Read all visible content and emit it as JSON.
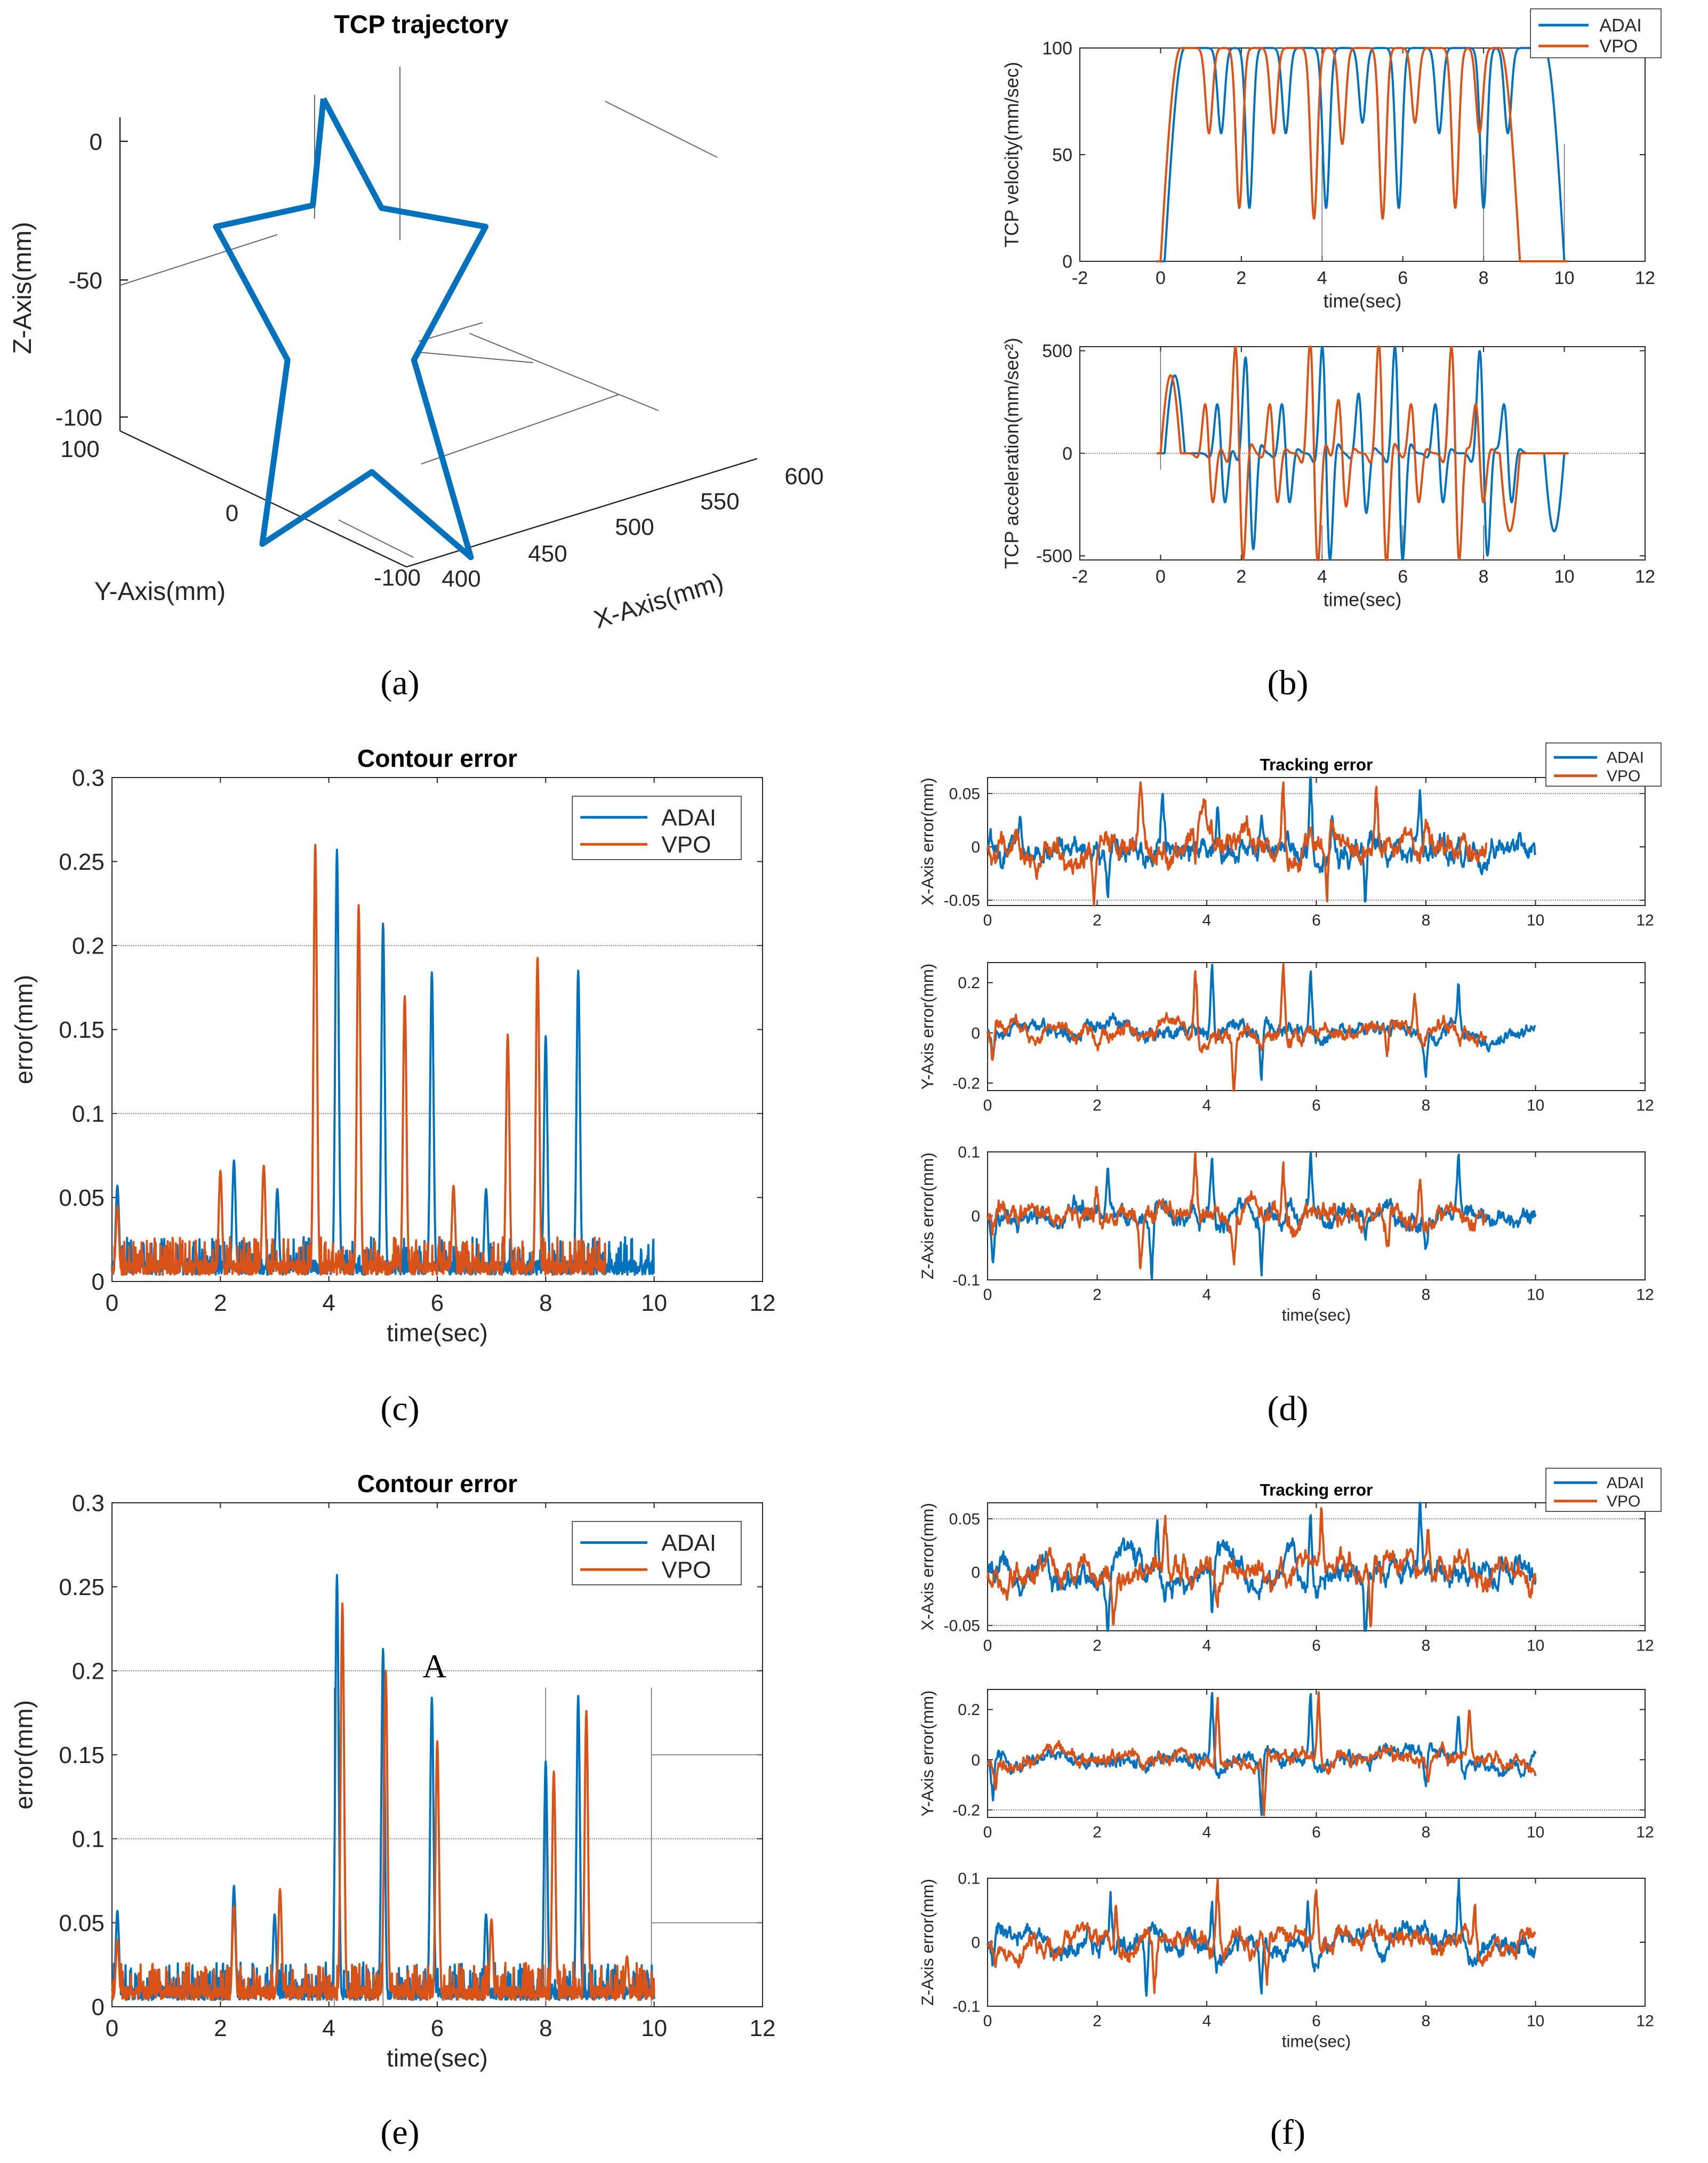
{
  "colors": {
    "adai": "#0072BD",
    "vpo": "#D95319",
    "axis": "#262626",
    "ref": "#666666"
  },
  "captions": [
    "(a)",
    "(b)",
    "(c)",
    "(d)",
    "(e)",
    "(f)"
  ],
  "chart_data": [
    {
      "id": "a",
      "type": "line3d",
      "title": "TCP trajectory",
      "xlabel": "X-Axis(mm)",
      "ylabel": "Y-Axis(mm)",
      "zlabel": "Z-Axis(mm)",
      "x_ticks": [
        "400",
        "450",
        "500",
        "550",
        "600"
      ],
      "y_ticks": [
        "-100",
        "0",
        "100"
      ],
      "z_ticks": [
        "0",
        "-50",
        "-100"
      ],
      "shape": "five-pointed star",
      "star_outline": [
        [
          0.255,
          0.13
        ],
        [
          0.393,
          0.335
        ],
        [
          0.64,
          0.37
        ],
        [
          0.47,
          0.62
        ],
        [
          0.605,
          0.99
        ],
        [
          0.37,
          0.83
        ],
        [
          0.11,
          0.965
        ],
        [
          0.17,
          0.62
        ],
        [
          0.0,
          0.37
        ],
        [
          0.23,
          0.33
        ]
      ],
      "series": [
        {
          "name": "star path"
        }
      ]
    },
    {
      "id": "b1",
      "type": "line",
      "title": "",
      "xlabel": "time(sec)",
      "ylabel": "TCP velocity(mm/sec)",
      "xlim": [
        -2,
        12
      ],
      "ylim": [
        0,
        100
      ],
      "x_ticks": [
        "-2",
        "0",
        "2",
        "4",
        "6",
        "8",
        "10",
        "12"
      ],
      "y_ticks": [
        "0",
        "50",
        "100"
      ],
      "legend": [
        "ADAI",
        "VPO"
      ],
      "series": [
        {
          "name": "ADAI",
          "dips": [
            [
              1.5,
              60
            ],
            [
              2.2,
              25
            ],
            [
              3.1,
              60
            ],
            [
              4.1,
              25
            ],
            [
              5.0,
              65
            ],
            [
              5.9,
              25
            ],
            [
              6.9,
              60
            ],
            [
              8.0,
              25
            ],
            [
              8.6,
              60
            ]
          ],
          "start": 0.1,
          "end": 10.0
        },
        {
          "name": "VPO",
          "dips": [
            [
              1.2,
              60
            ],
            [
              1.95,
              25
            ],
            [
              2.8,
              60
            ],
            [
              3.8,
              20
            ],
            [
              4.5,
              55
            ],
            [
              5.5,
              20
            ],
            [
              6.3,
              65
            ],
            [
              7.3,
              25
            ],
            [
              7.9,
              60
            ]
          ],
          "start": 0.0,
          "end": 8.9
        }
      ]
    },
    {
      "id": "b2",
      "type": "line",
      "title": "",
      "xlabel": "time(sec)",
      "ylabel": "TCP acceleration(mm/sec²)",
      "xlim": [
        -2,
        12
      ],
      "ylim": [
        -520,
        520
      ],
      "x_ticks": [
        "-2",
        "0",
        "2",
        "4",
        "6",
        "8",
        "10",
        "12"
      ],
      "y_ticks": [
        "-500",
        "0",
        "500"
      ],
      "series": [
        {
          "name": "ADAI",
          "times": [
            1.5,
            2.2,
            3.1,
            4.1,
            5.0,
            5.9,
            6.9,
            8.0,
            8.6
          ],
          "amps": [
            230,
            450,
            230,
            500,
            280,
            500,
            230,
            480,
            230
          ]
        },
        {
          "name": "VPO",
          "times": [
            1.2,
            1.95,
            2.8,
            3.8,
            4.5,
            5.5,
            6.3,
            7.3,
            7.9
          ],
          "amps": [
            230,
            500,
            230,
            520,
            250,
            520,
            230,
            500,
            230
          ]
        }
      ]
    },
    {
      "id": "c",
      "type": "line",
      "title": "Contour error",
      "xlabel": "time(sec)",
      "ylabel": "error(mm)",
      "xlim": [
        0,
        12
      ],
      "ylim": [
        0,
        0.3
      ],
      "x_ticks": [
        "0",
        "2",
        "4",
        "6",
        "8",
        "10",
        "12"
      ],
      "y_ticks": [
        "0",
        "0.05",
        "0.1",
        "0.15",
        "0.2",
        "0.25",
        "0.3"
      ],
      "legend": [
        "ADAI",
        "VPO"
      ],
      "series": [
        {
          "name": "ADAI",
          "peaks": [
            [
              0.1,
              0.057
            ],
            [
              2.25,
              0.072
            ],
            [
              3.05,
              0.055
            ],
            [
              4.15,
              0.257
            ],
            [
              5.0,
              0.213
            ],
            [
              5.9,
              0.184
            ],
            [
              6.9,
              0.055
            ],
            [
              8.0,
              0.146
            ],
            [
              8.6,
              0.185
            ]
          ],
          "end": 10.0
        },
        {
          "name": "VPO",
          "peaks": [
            [
              0.1,
              0.045
            ],
            [
              2.0,
              0.066
            ],
            [
              2.8,
              0.069
            ],
            [
              3.75,
              0.26
            ],
            [
              4.55,
              0.224
            ],
            [
              5.4,
              0.17
            ],
            [
              6.3,
              0.057
            ],
            [
              7.3,
              0.147
            ],
            [
              7.85,
              0.193
            ]
          ],
          "end": 9.1
        }
      ]
    },
    {
      "id": "d1",
      "type": "line",
      "title": "Tracking error",
      "xlabel": "",
      "ylabel": "X-Axis error(mm)",
      "xlim": [
        0,
        12
      ],
      "ylim": [
        -0.055,
        0.065
      ],
      "x_ticks": [
        "0",
        "2",
        "4",
        "6",
        "8",
        "10",
        "12"
      ],
      "y_ticks": [
        "-0.05",
        "0",
        "0.05"
      ],
      "legend": [
        "ADAI",
        "VPO"
      ],
      "series": [
        {
          "name": "ADAI",
          "spikes": [
            [
              0.6,
              0.03
            ],
            [
              2.2,
              -0.05
            ],
            [
              3.2,
              0.052
            ],
            [
              4.2,
              0.04
            ],
            [
              5.0,
              0.03
            ],
            [
              5.9,
              0.065
            ],
            [
              6.3,
              0.04
            ],
            [
              6.9,
              -0.055
            ],
            [
              7.9,
              0.055
            ],
            [
              8.6,
              0.02
            ]
          ],
          "end": 10.0
        },
        {
          "name": "VPO",
          "spikes": [
            [
              1.95,
              -0.05
            ],
            [
              2.8,
              0.05
            ],
            [
              3.8,
              -0.04
            ],
            [
              5.4,
              0.06
            ],
            [
              6.2,
              -0.055
            ],
            [
              7.1,
              0.06
            ],
            [
              8.0,
              0.02
            ]
          ],
          "end": 9.1
        }
      ]
    },
    {
      "id": "d2",
      "type": "line",
      "title": "",
      "xlabel": "",
      "ylabel": "Y-Axis error(mm)",
      "xlim": [
        0,
        12
      ],
      "ylim": [
        -0.23,
        0.28
      ],
      "x_ticks": [
        "0",
        "2",
        "4",
        "6",
        "8",
        "10",
        "12"
      ],
      "y_ticks": [
        "-0.2",
        "0",
        "0.2"
      ],
      "series": [
        {
          "name": "ADAI",
          "spikes": [
            [
              0.1,
              -0.09
            ],
            [
              4.1,
              0.27
            ],
            [
              5.0,
              -0.22
            ],
            [
              5.9,
              0.24
            ],
            [
              8.0,
              -0.12
            ],
            [
              8.6,
              0.18
            ]
          ],
          "end": 10.0
        },
        {
          "name": "VPO",
          "spikes": [
            [
              0.1,
              -0.12
            ],
            [
              3.8,
              0.28
            ],
            [
              4.5,
              -0.22
            ],
            [
              5.4,
              0.25
            ],
            [
              7.3,
              -0.13
            ],
            [
              7.8,
              0.17
            ]
          ],
          "end": 9.1
        }
      ]
    },
    {
      "id": "d3",
      "type": "line",
      "title": "",
      "xlabel": "time(sec)",
      "ylabel": "Z-Axis error(mm)",
      "xlim": [
        0,
        12
      ],
      "ylim": [
        -0.1,
        0.1
      ],
      "x_ticks": [
        "0",
        "2",
        "4",
        "6",
        "8",
        "10",
        "12"
      ],
      "y_ticks": [
        "-0.1",
        "0",
        "0.1"
      ],
      "series": [
        {
          "name": "ADAI",
          "spikes": [
            [
              0.1,
              -0.045
            ],
            [
              2.2,
              0.07
            ],
            [
              3.0,
              -0.09
            ],
            [
              4.1,
              0.09
            ],
            [
              5.0,
              -0.08
            ],
            [
              5.9,
              0.08
            ],
            [
              6.9,
              -0.05
            ],
            [
              8.0,
              -0.05
            ],
            [
              8.6,
              0.09
            ]
          ],
          "end": 10.0
        },
        {
          "name": "VPO",
          "spikes": [
            [
              0.1,
              -0.03
            ],
            [
              2.0,
              0.05
            ],
            [
              2.8,
              -0.09
            ],
            [
              3.8,
              0.075
            ],
            [
              4.5,
              -0.07
            ],
            [
              5.4,
              0.08
            ],
            [
              7.3,
              -0.05
            ],
            [
              7.9,
              0.07
            ]
          ],
          "end": 9.1
        }
      ]
    },
    {
      "id": "e",
      "type": "line",
      "title": "Contour error",
      "xlabel": "time(sec)",
      "ylabel": "error(mm)",
      "xlim": [
        0,
        12
      ],
      "ylim": [
        0,
        0.3
      ],
      "x_ticks": [
        "0",
        "2",
        "4",
        "6",
        "8",
        "10",
        "12"
      ],
      "y_ticks": [
        "0",
        "0.05",
        "0.1",
        "0.15",
        "0.2",
        "0.25",
        "0.3"
      ],
      "legend": [
        "ADAI",
        "VPO"
      ],
      "annotation": "A",
      "series": [
        {
          "name": "ADAI",
          "peaks": [
            [
              0.1,
              0.057
            ],
            [
              2.25,
              0.072
            ],
            [
              3.0,
              0.055
            ],
            [
              4.15,
              0.257
            ],
            [
              5.0,
              0.213
            ],
            [
              5.9,
              0.184
            ],
            [
              6.9,
              0.055
            ],
            [
              8.0,
              0.146
            ],
            [
              8.6,
              0.185
            ]
          ],
          "end": 10.0
        },
        {
          "name": "VPO",
          "peaks": [
            [
              0.1,
              0.04
            ],
            [
              2.25,
              0.06
            ],
            [
              3.1,
              0.07
            ],
            [
              4.25,
              0.24
            ],
            [
              5.05,
              0.2
            ],
            [
              6.0,
              0.158
            ],
            [
              7.0,
              0.052
            ],
            [
              8.15,
              0.14
            ],
            [
              8.75,
              0.176
            ],
            [
              9.5,
              0.03
            ]
          ],
          "end": 10.0
        }
      ]
    },
    {
      "id": "f1",
      "type": "line",
      "title": "Tracking error",
      "xlabel": "",
      "ylabel": "X-Axis error(mm)",
      "xlim": [
        0,
        12
      ],
      "ylim": [
        -0.055,
        0.065
      ],
      "x_ticks": [
        "0",
        "2",
        "4",
        "6",
        "8",
        "10",
        "12"
      ],
      "y_ticks": [
        "-0.05",
        "0",
        "0.05"
      ],
      "legend": [
        "ADAI",
        "VPO"
      ],
      "series": [
        {
          "name": "ADAI",
          "spikes": [
            [
              2.2,
              -0.05
            ],
            [
              3.1,
              0.05
            ],
            [
              4.1,
              -0.04
            ],
            [
              5.9,
              0.065
            ],
            [
              6.9,
              -0.055
            ],
            [
              7.9,
              0.055
            ]
          ],
          "end": 10.0
        },
        {
          "name": "VPO",
          "spikes": [
            [
              2.3,
              -0.045
            ],
            [
              3.25,
              0.045
            ],
            [
              4.2,
              -0.035
            ],
            [
              6.1,
              0.06
            ],
            [
              7.0,
              -0.05
            ],
            [
              8.05,
              0.05
            ]
          ],
          "end": 10.0
        }
      ]
    },
    {
      "id": "f2",
      "type": "line",
      "title": "",
      "xlabel": "",
      "ylabel": "Y-Axis error(mm)",
      "xlim": [
        0,
        12
      ],
      "ylim": [
        -0.23,
        0.28
      ],
      "x_ticks": [
        "0",
        "2",
        "4",
        "6",
        "8",
        "10",
        "12"
      ],
      "y_ticks": [
        "-0.2",
        "0",
        "0.2"
      ],
      "series": [
        {
          "name": "ADAI",
          "spikes": [
            [
              0.1,
              -0.12
            ],
            [
              4.1,
              0.27
            ],
            [
              5.0,
              -0.22
            ],
            [
              5.9,
              0.24
            ],
            [
              8.0,
              -0.12
            ],
            [
              8.6,
              0.18
            ]
          ],
          "end": 10.0
        },
        {
          "name": "VPO",
          "spikes": [
            [
              0.15,
              -0.1
            ],
            [
              4.2,
              0.26
            ],
            [
              5.05,
              -0.2
            ],
            [
              6.05,
              0.23
            ],
            [
              8.05,
              -0.11
            ],
            [
              8.8,
              0.17
            ]
          ],
          "end": 10.0
        }
      ]
    },
    {
      "id": "f3",
      "type": "line",
      "title": "",
      "xlabel": "time(sec)",
      "ylabel": "Z-Axis error(mm)",
      "xlim": [
        0,
        12
      ],
      "ylim": [
        -0.1,
        0.1
      ],
      "x_ticks": [
        "0",
        "2",
        "4",
        "6",
        "8",
        "10",
        "12"
      ],
      "y_ticks": [
        "-0.1",
        "0",
        "0.1"
      ],
      "series": [
        {
          "name": "ADAI",
          "spikes": [
            [
              0.1,
              -0.045
            ],
            [
              2.25,
              0.07
            ],
            [
              2.9,
              -0.09
            ],
            [
              4.1,
              0.09
            ],
            [
              5.0,
              -0.08
            ],
            [
              5.85,
              0.08
            ],
            [
              8.6,
              0.09
            ]
          ],
          "end": 10.0
        },
        {
          "name": "VPO",
          "spikes": [
            [
              0.15,
              -0.03
            ],
            [
              2.35,
              0.06
            ],
            [
              3.05,
              -0.09
            ],
            [
              4.2,
              0.08
            ],
            [
              5.1,
              -0.07
            ],
            [
              6.0,
              0.07
            ],
            [
              8.9,
              0.065
            ]
          ],
          "end": 10.0
        }
      ]
    }
  ]
}
